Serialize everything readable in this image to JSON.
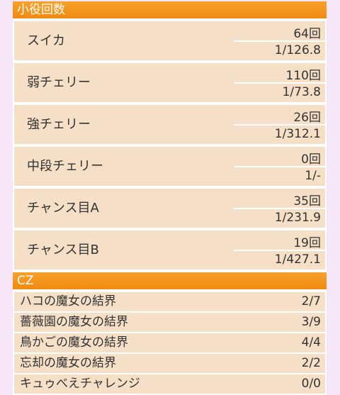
{
  "koyaku": {
    "header": "小役回数",
    "rows": [
      {
        "label": "スイカ",
        "count": "64回",
        "prob": "1/126.8"
      },
      {
        "label": "弱チェリー",
        "count": "110回",
        "prob": "1/73.8"
      },
      {
        "label": "強チェリー",
        "count": "26回",
        "prob": "1/312.1"
      },
      {
        "label": "中段チェリー",
        "count": "0回",
        "prob": "1/-"
      },
      {
        "label": "チャンス目A",
        "count": "35回",
        "prob": "1/231.9"
      },
      {
        "label": "チャンス目B",
        "count": "19回",
        "prob": "1/427.1"
      }
    ]
  },
  "cz": {
    "header": "CZ",
    "rows": [
      {
        "label": "ハコの魔女の結界",
        "value": "2/7"
      },
      {
        "label": "薔薇園の魔女の結界",
        "value": "3/9"
      },
      {
        "label": "鳥かごの魔女の結界",
        "value": "4/4"
      },
      {
        "label": "忘却の魔女の結界",
        "value": "2/2"
      },
      {
        "label": "キュゥべえチャレンジ",
        "value": "0/0"
      }
    ]
  }
}
